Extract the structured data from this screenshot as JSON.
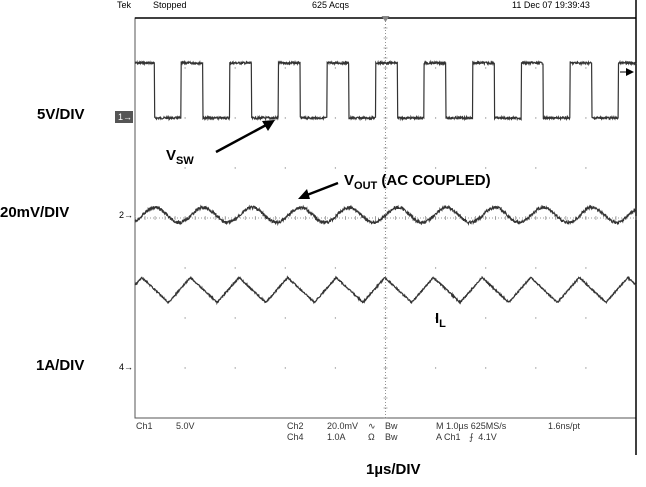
{
  "header": {
    "brand": "Tek",
    "run_state": "Stopped",
    "acquisitions": "625 Acqs",
    "timestamp": "11 Dec 07 19:39:43"
  },
  "channel_markers": {
    "ch1": "1",
    "ch2": "2",
    "ch4": "4"
  },
  "scale_labels": {
    "vsw": "5V/DIV",
    "vout": "20mV/DIV",
    "il": "1A/DIV",
    "time": "1µs/DIV"
  },
  "trace_labels": {
    "vsw_main": "V",
    "vsw_sub": "SW",
    "vout_main": "V",
    "vout_sub": "OUT",
    "vout_suffix": " (AC COUPLED)",
    "il_main": "I",
    "il_sub": "L"
  },
  "footer": {
    "ch1_label": "Ch1",
    "ch1_scale": "5.0V",
    "ch2_label": "Ch2",
    "ch2_scale": "20.0mV",
    "ch2_coupling": "∿",
    "ch2_bw": "Bw",
    "ch4_label": "Ch4",
    "ch4_scale": "1.0A",
    "ch4_coupling": "Ω",
    "ch4_bw": "Bw",
    "timebase": "M 1.0µs 625MS/s",
    "resolution": "1.6ns/pt",
    "trigger_source": "A Ch1",
    "trigger_slope": "⨍",
    "trigger_level": "4.1V"
  },
  "chart_data": {
    "type": "line",
    "x_unit": "µs",
    "xlim": [
      0,
      10
    ],
    "period_us": 0.97,
    "series": [
      {
        "name": "V_SW",
        "waveform": "square",
        "scale": "5V/DIV",
        "low_div": 0,
        "high_div": 1.1,
        "duty": 0.45
      },
      {
        "name": "V_OUT (AC COUPLED)",
        "waveform": "sine",
        "scale": "20mV/DIV",
        "amplitude_div": 0.15
      },
      {
        "name": "I_L",
        "waveform": "triangle",
        "scale": "1A/DIV",
        "amplitude_div": 0.25
      }
    ]
  },
  "colors": {
    "trace": "#333333",
    "grid": "#999999"
  }
}
